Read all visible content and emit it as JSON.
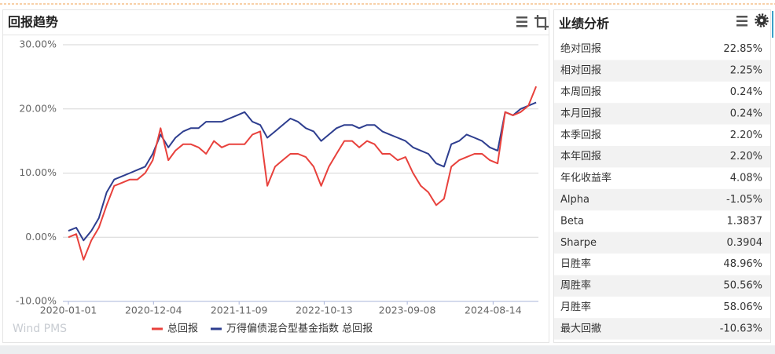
{
  "chart_data": {
    "type": "line",
    "title": "回报趋势",
    "watermark": "Wind PMS",
    "x": [
      "2020-01-01",
      "2020-02-01",
      "2020-03-01",
      "2020-04-01",
      "2020-05-01",
      "2020-06-01",
      "2020-07-01",
      "2020-08-01",
      "2020-09-01",
      "2020-10-01",
      "2020-11-01",
      "2020-12-01",
      "2021-01-01",
      "2021-02-01",
      "2021-03-01",
      "2021-04-01",
      "2021-05-01",
      "2021-06-01",
      "2021-07-01",
      "2021-08-01",
      "2021-09-01",
      "2021-10-01",
      "2021-11-01",
      "2021-12-01",
      "2022-01-01",
      "2022-02-01",
      "2022-03-01",
      "2022-04-01",
      "2022-05-01",
      "2022-06-01",
      "2022-07-01",
      "2022-08-01",
      "2022-09-01",
      "2022-10-01",
      "2022-11-01",
      "2022-12-01",
      "2023-01-01",
      "2023-02-01",
      "2023-03-01",
      "2023-04-01",
      "2023-05-01",
      "2023-06-01",
      "2023-07-01",
      "2023-08-01",
      "2023-09-01",
      "2023-10-01",
      "2023-11-01",
      "2023-12-01",
      "2024-01-01",
      "2024-02-01",
      "2024-03-01",
      "2024-04-01",
      "2024-05-01",
      "2024-06-01",
      "2024-07-01",
      "2024-08-01",
      "2024-09-01",
      "2024-10-01",
      "2024-11-01",
      "2024-12-01",
      "2025-01-01",
      "2025-02-01"
    ],
    "series": [
      {
        "name": "总回报",
        "color": "#e8413c",
        "values": [
          0,
          0.5,
          -3.5,
          -0.5,
          1.5,
          5,
          8,
          8.5,
          9,
          9,
          10,
          12,
          17,
          12,
          13.5,
          14.5,
          14.5,
          14,
          13,
          15,
          14,
          14.5,
          14.5,
          14.5,
          16,
          16.5,
          8,
          11,
          12,
          13,
          13,
          12.5,
          11,
          8,
          11,
          13,
          15,
          15,
          14,
          15,
          14.5,
          13,
          13,
          12,
          12.5,
          10,
          8,
          7,
          5,
          6,
          11,
          12,
          12.5,
          13,
          13,
          12,
          11.5,
          19.5,
          19,
          19.5,
          20.5,
          23.5
        ]
      },
      {
        "name": "万得偏债混合型基金指数 总回报",
        "color": "#2e3e8f",
        "values": [
          1,
          1.5,
          -0.5,
          1,
          3,
          7,
          9,
          9.5,
          10,
          10.5,
          11,
          13,
          16,
          14,
          15.5,
          16.5,
          17,
          17,
          18,
          18,
          18,
          18.5,
          19,
          19.5,
          18,
          17.5,
          15.5,
          16.5,
          17.5,
          18.5,
          18,
          17,
          16.5,
          15,
          16,
          17,
          17.5,
          17.5,
          17,
          17.5,
          17.5,
          16.5,
          16,
          15.5,
          15,
          14,
          13.5,
          13,
          11.5,
          11,
          14.5,
          15,
          16,
          15.5,
          15,
          14,
          13.5,
          19.5,
          19,
          20,
          20.5,
          21
        ]
      }
    ],
    "xlim": [
      "2019-12-10",
      "2025-02-10"
    ],
    "xticks": [
      "2020-01-01",
      "2020-12-04",
      "2021-11-09",
      "2022-10-13",
      "2023-09-08",
      "2024-08-14"
    ],
    "ylim": [
      -10,
      30
    ],
    "yticks": [
      {
        "value": -10,
        "label": "-10.00%"
      },
      {
        "value": 0,
        "label": "0.00%"
      },
      {
        "value": 10,
        "label": "10.00%"
      },
      {
        "value": 20,
        "label": "20.00%"
      },
      {
        "value": 30,
        "label": "30.00%"
      }
    ],
    "grid": true
  },
  "panel": {
    "title": "业绩分析",
    "rows": [
      [
        "绝对回报",
        "22.85%"
      ],
      [
        "相对回报",
        "2.25%"
      ],
      [
        "本周回报",
        "0.24%"
      ],
      [
        "本月回报",
        "0.24%"
      ],
      [
        "本季回报",
        "2.20%"
      ],
      [
        "本年回报",
        "2.20%"
      ],
      [
        "年化收益率",
        "4.08%"
      ],
      [
        "Alpha",
        "-1.05%"
      ],
      [
        "Beta",
        "1.3837"
      ],
      [
        "Sharpe",
        "0.3904"
      ],
      [
        "日胜率",
        "48.96%"
      ],
      [
        "周胜率",
        "50.56%"
      ],
      [
        "月胜率",
        "58.06%"
      ],
      [
        "最大回撤",
        "-10.63%"
      ]
    ]
  }
}
